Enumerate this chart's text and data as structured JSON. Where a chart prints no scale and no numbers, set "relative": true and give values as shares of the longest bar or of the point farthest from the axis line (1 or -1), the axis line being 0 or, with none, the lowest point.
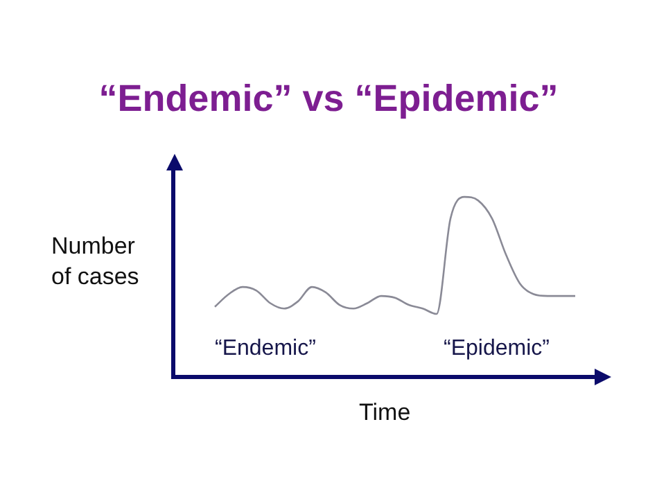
{
  "chart_data": {
    "type": "line",
    "title": "“Endemic” vs “Epidemic”",
    "xlabel": "Time",
    "ylabel": "Number of cases",
    "relative": true,
    "marker": "none",
    "line_style": "solid",
    "annotations": [
      "“Endemic”",
      "“Epidemic”"
    ],
    "categories": [
      null,
      null,
      null,
      null,
      null,
      null,
      null,
      null,
      null,
      null,
      null,
      null,
      null,
      null,
      null,
      null,
      null,
      null,
      null,
      null,
      null,
      null,
      null,
      null,
      null,
      null,
      null
    ],
    "series": [
      {
        "color": "#8a8a96",
        "values": [
          0.39,
          0.46,
          0.5,
          0.48,
          0.41,
          0.38,
          0.42,
          0.5,
          0.47,
          0.4,
          0.38,
          0.41,
          0.45,
          0.44,
          0.4,
          0.38,
          0.35,
          0.88,
          1,
          0.98,
          0.88,
          0.68,
          0.52,
          0.46,
          0.45,
          0.45,
          0.45
        ]
      }
    ]
  }
}
